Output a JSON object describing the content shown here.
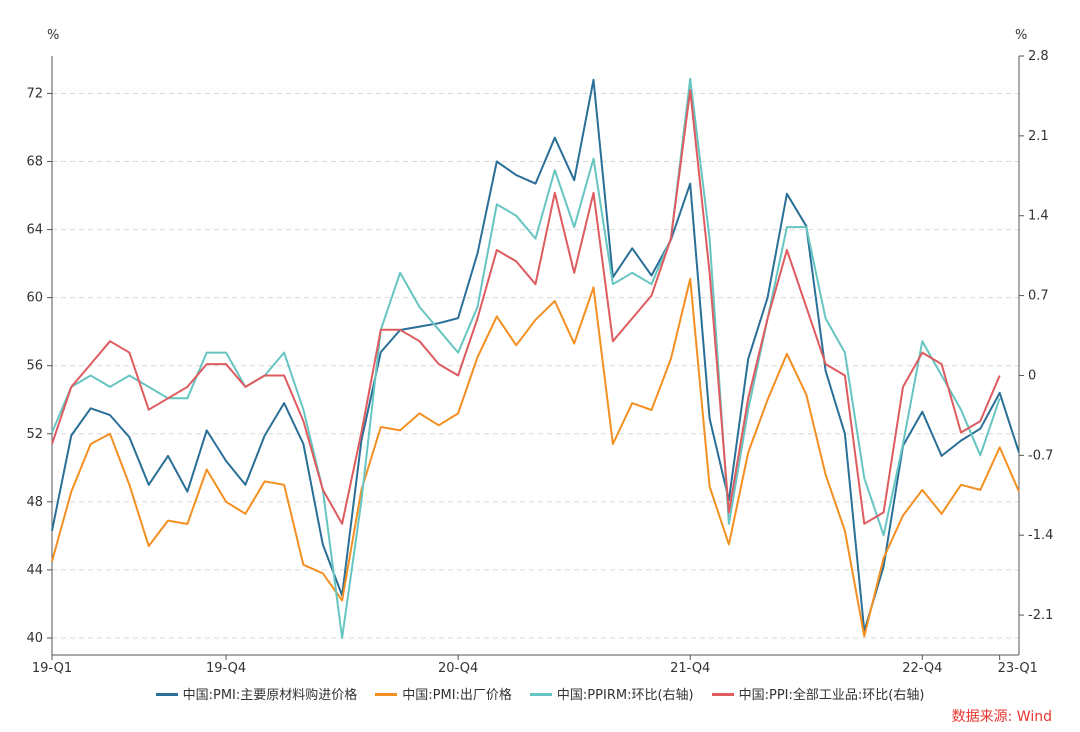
{
  "chart_data": {
    "type": "line",
    "left_unit": "%",
    "right_unit": "%",
    "ylim_left": [
      39,
      74.2
    ],
    "ylim_right": [
      -2.45,
      2.8
    ],
    "left_ticks": [
      "40",
      "44",
      "48",
      "52",
      "56",
      "60",
      "64",
      "68",
      "72"
    ],
    "right_ticks": [
      "-2.1",
      "-1.4",
      "-0.7",
      "0",
      "0.7",
      "1.4",
      "2.1",
      "2.8"
    ],
    "x_tick_labels": [
      "19-Q1",
      "19-Q4",
      "20-Q4",
      "21-Q4",
      "22-Q4",
      "23-Q1"
    ],
    "x_tick_index": [
      0,
      9,
      21,
      33,
      45,
      49
    ],
    "grid": "horizontal-dashed",
    "legend_position": "bottom",
    "series": [
      {
        "name": "中国:PMI:主要原材料购进价格",
        "axis": "left",
        "color": "#2a6f97",
        "values": [
          46.3,
          51.9,
          53.5,
          53.1,
          51.8,
          49.0,
          50.7,
          48.6,
          52.2,
          50.4,
          49.0,
          51.9,
          53.8,
          51.4,
          45.5,
          42.5,
          51.6,
          56.8,
          58.1,
          58.3,
          58.5,
          58.8,
          62.6,
          68.0,
          67.2,
          66.7,
          69.4,
          66.9,
          72.8,
          61.2,
          62.9,
          61.3,
          63.4,
          66.7,
          52.9,
          48.1,
          56.4,
          60.0,
          66.1,
          64.2,
          55.7,
          52.0,
          40.4,
          44.2,
          51.3,
          53.3,
          50.7,
          51.6,
          52.3,
          54.4,
          50.9
        ]
      },
      {
        "name": "中国:PMI:出厂价格",
        "axis": "left",
        "color": "#f39021",
        "values": [
          44.5,
          48.6,
          51.4,
          52.0,
          49.0,
          45.4,
          46.9,
          46.7,
          49.9,
          48.0,
          47.3,
          49.2,
          49.0,
          44.3,
          43.8,
          42.2,
          48.7,
          52.4,
          52.2,
          53.2,
          52.5,
          53.2,
          56.5,
          58.9,
          57.2,
          58.7,
          59.8,
          57.3,
          60.6,
          51.4,
          53.8,
          53.4,
          56.4,
          61.1,
          48.9,
          45.5,
          50.9,
          54.0,
          56.7,
          54.3,
          49.6,
          46.3,
          40.1,
          44.7,
          47.2,
          48.7,
          47.3,
          49.0,
          48.7,
          51.2,
          48.6
        ]
      },
      {
        "name": "中国:PPIRM:环比(右轴)",
        "axis": "right",
        "color": "#67c5c1",
        "values": [
          -0.5,
          -0.1,
          0,
          -0.1,
          0,
          -0.1,
          -0.2,
          -0.2,
          0.2,
          0.2,
          -0.1,
          0,
          0.2,
          -0.3,
          -1.0,
          -2.3,
          -1.1,
          0.4,
          0.9,
          0.6,
          0.4,
          0.2,
          0.6,
          1.5,
          1.4,
          1.2,
          1.8,
          1.3,
          1.9,
          0.8,
          0.9,
          0.8,
          1.2,
          2.6,
          1.2,
          -1.3,
          -0.3,
          0.5,
          1.3,
          1.3,
          0.5,
          0.2,
          -0.9,
          -1.4,
          -0.6,
          0.3,
          0,
          -0.3,
          -0.7,
          -0.2
        ]
      },
      {
        "name": "中国:PPI:全部工业品:环比(右轴)",
        "axis": "right",
        "color": "#de5b5f",
        "values": [
          -0.6,
          -0.1,
          0.1,
          0.3,
          0.2,
          -0.3,
          -0.2,
          -0.1,
          0.1,
          0.1,
          -0.1,
          0,
          0,
          -0.4,
          -1.0,
          -1.3,
          -0.5,
          0.4,
          0.4,
          0.3,
          0.1,
          0,
          0.5,
          1.1,
          1.0,
          0.8,
          1.6,
          0.9,
          1.6,
          0.3,
          0.5,
          0.7,
          1.2,
          2.5,
          0.9,
          -1.2,
          -0.2,
          0.5,
          1.1,
          0.6,
          0.1,
          0,
          -1.3,
          -1.2,
          -0.1,
          0.2,
          0.1,
          -0.5,
          -0.4,
          0
        ]
      }
    ]
  },
  "source_text": "数据来源: Wind"
}
